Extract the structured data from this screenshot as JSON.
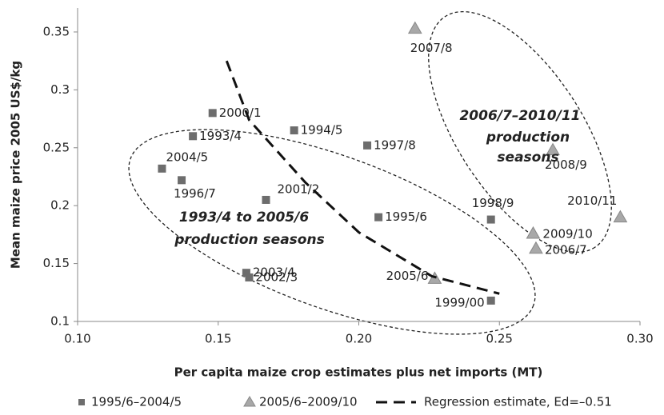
{
  "chart_data": {
    "type": "scatter",
    "xlabel": "Per capita  maize crop estimates plus net imports  (MT)",
    "ylabel": "Mean maize price 2005 US$/kg",
    "xlim": [
      0.1,
      0.3
    ],
    "ylim": [
      0.1,
      0.37
    ],
    "xticks": [
      {
        "value": 0.1,
        "label": "0.10"
      },
      {
        "value": 0.15,
        "label": "0.15"
      },
      {
        "value": 0.2,
        "label": "0.20"
      },
      {
        "value": 0.25,
        "label": "0.25"
      },
      {
        "value": 0.3,
        "label": "0.30"
      }
    ],
    "yticks": [
      0.1,
      0.15,
      0.2,
      0.25,
      0.3,
      0.35
    ],
    "series": [
      {
        "name": "1995/6–2004/5",
        "color": "#6d6d6d",
        "marker": "square",
        "labels": [
          "1993/4",
          "2000/1",
          "1994/5",
          "1997/8",
          "2004/5",
          "1996/7",
          "2001/2",
          "1995/6",
          "1998/9",
          "2003/4",
          "2002/3",
          "1999/00"
        ],
        "x": [
          0.141,
          0.148,
          0.177,
          0.203,
          0.13,
          0.137,
          0.167,
          0.207,
          0.247,
          0.16,
          0.161,
          0.247
        ],
        "values": [
          0.26,
          0.28,
          0.265,
          0.252,
          0.232,
          0.222,
          0.205,
          0.19,
          0.188,
          0.142,
          0.138,
          0.118
        ]
      },
      {
        "name": "2005/6–2009/10",
        "color": "#a8a8a8",
        "marker": "triangle",
        "labels": [
          "2007/8",
          "2008/9",
          "2010/11",
          "2009/10",
          "2006/7",
          "2005/6"
        ],
        "x": [
          0.22,
          0.269,
          0.293,
          0.262,
          0.263,
          0.227
        ],
        "values": [
          0.353,
          0.248,
          0.19,
          0.176,
          0.163,
          0.137
        ]
      },
      {
        "name": "Regression estimate, Ed=–0.51",
        "color": "#111111",
        "type": "line",
        "x": [
          0.153,
          0.161,
          0.181,
          0.2,
          0.226,
          0.25
        ],
        "values": [
          0.325,
          0.274,
          0.22,
          0.177,
          0.139,
          0.124
        ]
      }
    ],
    "annotations": [
      "1993/4 to 2005/6",
      "production seasons",
      "2006/7–2010/11",
      "production",
      "seasons"
    ]
  }
}
